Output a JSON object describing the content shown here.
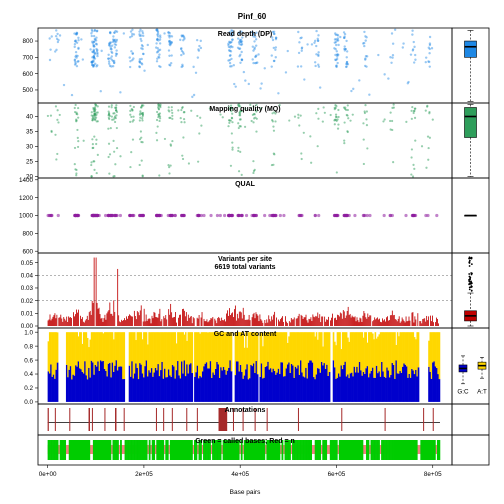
{
  "figure": {
    "title": "Pinf_60",
    "xlabel": "Base pairs",
    "x_ticks": [
      "0e+00",
      "2e+05",
      "4e+05",
      "6e+05",
      "8e+05"
    ],
    "x_tick_values": [
      0,
      200000,
      400000,
      600000,
      800000
    ],
    "x_range": [
      -20000,
      840000
    ],
    "colors": {
      "dp": "#1E88E5",
      "mq": "#2E9E5B",
      "qual": "#8E1D9E",
      "variants": "#C00000",
      "gc": "#0000CC",
      "at": "#FFD700",
      "annotations": "#A52A2A",
      "called": "#00CC00",
      "not_called": "#F08080"
    }
  },
  "chart_data": [
    {
      "id": "dp",
      "type": "scatter",
      "title": "Read depth (DP)",
      "ylim": [
        420,
        880
      ],
      "yticks": [
        "500",
        "600",
        "700",
        "800"
      ],
      "ytick_values": [
        500,
        600,
        700,
        800
      ],
      "boxplot": {
        "min": 430,
        "q1": 700,
        "median": 765,
        "q3": 800,
        "max": 865
      }
    },
    {
      "id": "mq",
      "type": "scatter",
      "title": "Mapping quality (MQ)",
      "ylim": [
        19.5,
        44.5
      ],
      "yticks": [
        "20",
        "25",
        "30",
        "35",
        "40"
      ],
      "ytick_values": [
        20,
        25,
        30,
        35,
        40
      ],
      "boxplot": {
        "min": 20,
        "q1": 33,
        "median": 40,
        "q3": 43,
        "max": 44
      }
    },
    {
      "id": "qual",
      "type": "scatter",
      "title": "QUAL",
      "ylim": [
        580,
        1420
      ],
      "yticks": [
        "600",
        "800",
        "1000",
        "1200",
        "1400"
      ],
      "ytick_values": [
        600,
        800,
        1000,
        1200,
        1400
      ],
      "value": 1000,
      "boxplot": {
        "min": 1000,
        "q1": 1000,
        "median": 1000,
        "q3": 1000,
        "max": 1000
      }
    },
    {
      "id": "variants",
      "type": "bar",
      "title": "Variants per site",
      "subtitle": "6619 total variants",
      "ylim": [
        0,
        0.056
      ],
      "yticks": [
        "0.00",
        "0.01",
        "0.02",
        "0.03",
        "0.04",
        "0.05"
      ],
      "ytick_values": [
        0,
        0.01,
        0.02,
        0.03,
        0.04,
        0.05
      ],
      "reference_lines": [
        0.02,
        0.04
      ],
      "boxplot": {
        "min": 0,
        "q1": 0.004,
        "median": 0.008,
        "q3": 0.012,
        "max": 0.026
      }
    },
    {
      "id": "gcat",
      "type": "bar",
      "title": "GC and AT content",
      "ylim": [
        -0.03,
        1.06
      ],
      "yticks": [
        "0.0",
        "0.2",
        "0.4",
        "0.6",
        "0.8",
        "1.0"
      ],
      "ytick_values": [
        0,
        0.2,
        0.4,
        0.6,
        0.8,
        1.0
      ],
      "series": [
        {
          "name": "G:C",
          "boxplot": {
            "min": 0.26,
            "q1": 0.43,
            "median": 0.48,
            "q3": 0.53,
            "max": 0.66
          }
        },
        {
          "name": "A:T",
          "boxplot": {
            "min": 0.34,
            "q1": 0.47,
            "median": 0.52,
            "q3": 0.57,
            "max": 0.64
          }
        }
      ]
    },
    {
      "id": "annotations",
      "type": "bar",
      "title": "Annotations"
    },
    {
      "id": "called",
      "type": "bar",
      "title": "Green = called bases; Red = n"
    }
  ]
}
